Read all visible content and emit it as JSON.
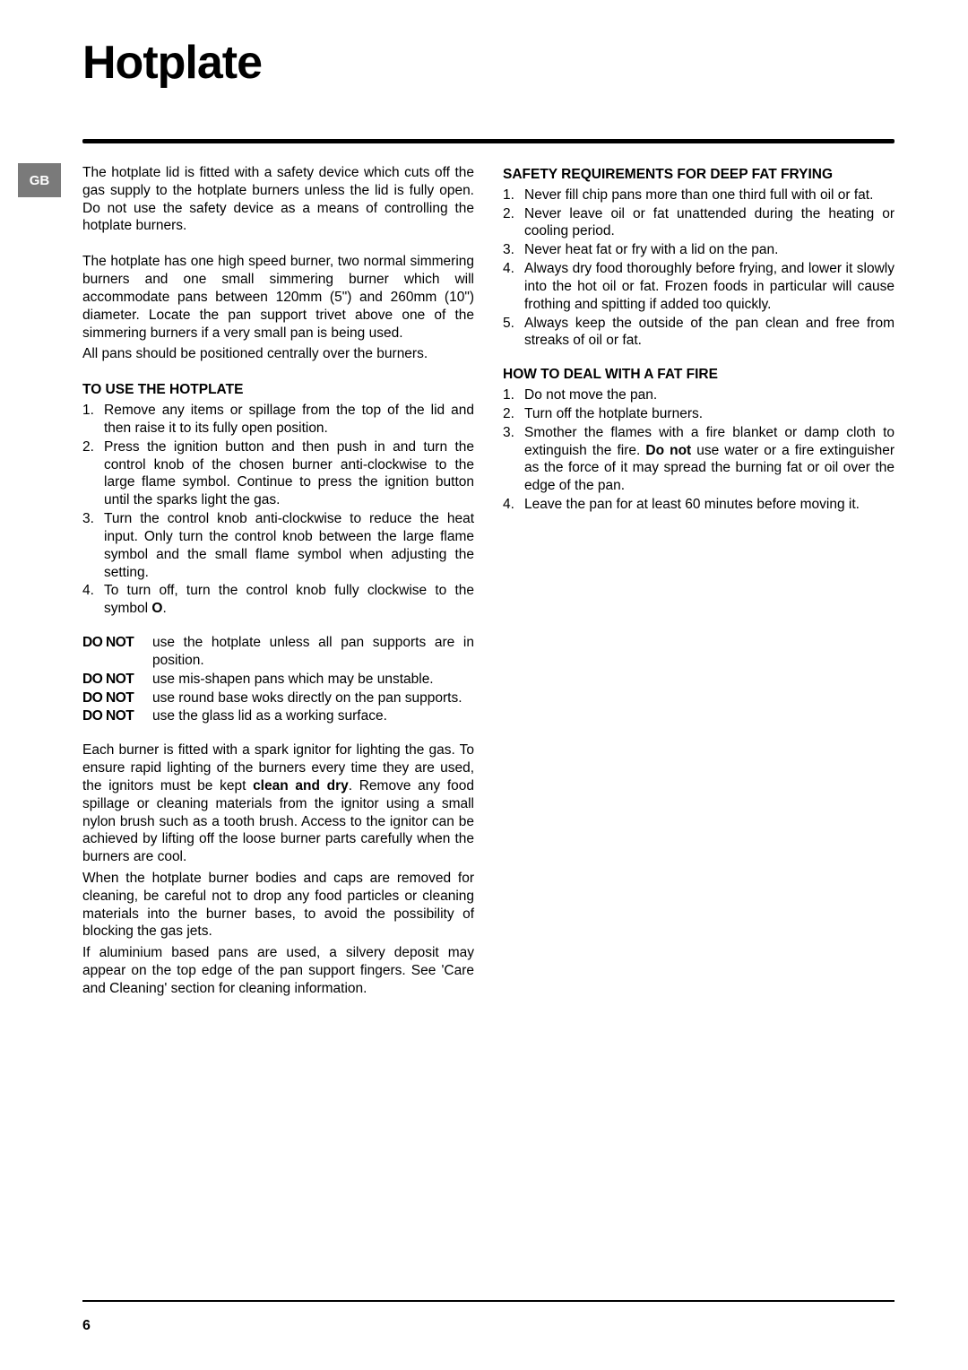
{
  "title": "Hotplate",
  "badge": "GB",
  "pageNumber": "6",
  "left": {
    "intro1": "The hotplate lid is fitted with a safety device which cuts off the gas supply to the hotplate burners unless the lid is fully open. Do not use the safety device as a means of controlling the hotplate burners.",
    "intro2": "The hotplate has one high speed burner, two normal simmering burners and one small simmering burner which will accommodate pans between 120mm (5\") and 260mm (10\") diameter. Locate the pan support trivet above one of the simmering burners if a very small pan is being used.",
    "intro3": "All pans should be positioned centrally over the burners.",
    "useHeading": "TO USE THE HOTPLATE",
    "useList": [
      "Remove any items or spillage from the top of the lid and then raise it to its fully open position.",
      "Press the ignition button and then push in and turn the control knob of the chosen burner anti-clockwise to the large flame symbol. Continue to press the ignition button until the sparks light the gas.",
      "Turn the control knob anti-clockwise to reduce the heat input. Only turn the control knob between the large flame symbol and the small flame symbol when adjusting the setting.",
      "To turn off, turn the control knob fully clockwise to the symbol O."
    ],
    "donotLabel": "DO NOT",
    "donotList": [
      "use the hotplate unless all pan supports are in position.",
      "use mis-shapen pans which may be unstable.",
      "use round base woks directly on the pan supports.",
      "use the glass lid as a working surface."
    ],
    "ignitor1": "Each burner is fitted with a spark ignitor for lighting the gas. To ensure rapid lighting of the burners every time they are used, the ignitors must be kept ",
    "cleanDry": "clean and dry",
    "ignitor2": ". Remove any food spillage or cleaning materials from the ignitor using a small nylon brush such as a tooth brush. Access to the ignitor can be achieved by lifting off the loose burner parts carefully when the burners are cool.",
    "cleaning": "When the hotplate burner bodies and caps are removed for cleaning, be careful not to drop any food particles or cleaning materials into the burner bases, to avoid the possibility of blocking the gas jets.",
    "aluminium": "If aluminium based pans are used, a silvery deposit may appear on the top edge of the pan support fingers. See 'Care and Cleaning' section for cleaning information."
  },
  "right": {
    "safetyHeading": "SAFETY REQUIREMENTS FOR DEEP FAT FRYING",
    "safetyList": [
      "Never fill chip pans more than one third full with oil or fat.",
      "Never leave oil or fat unattended during the heating or cooling period.",
      "Never heat fat or fry with a lid on the pan.",
      "Always dry food thoroughly before frying, and lower it slowly into the hot oil or fat. Frozen foods in particular will cause frothing and spitting if added too quickly.",
      "Always keep the outside of the pan clean and free from streaks of oil or fat."
    ],
    "fireHeading": "HOW TO DEAL WITH A FAT FIRE",
    "fireList1": "Do not move the pan.",
    "fireList2": "Turn off the hotplate burners.",
    "fireList3a": "Smother the flames with a fire blanket or damp cloth to extinguish the fire. ",
    "fireList3b": "Do not",
    "fireList3c": " use water or a fire extinguisher as the force of it may spread the burning fat or oil over the edge of the pan.",
    "fireList4": "Leave the pan for at least 60 minutes before moving it."
  }
}
